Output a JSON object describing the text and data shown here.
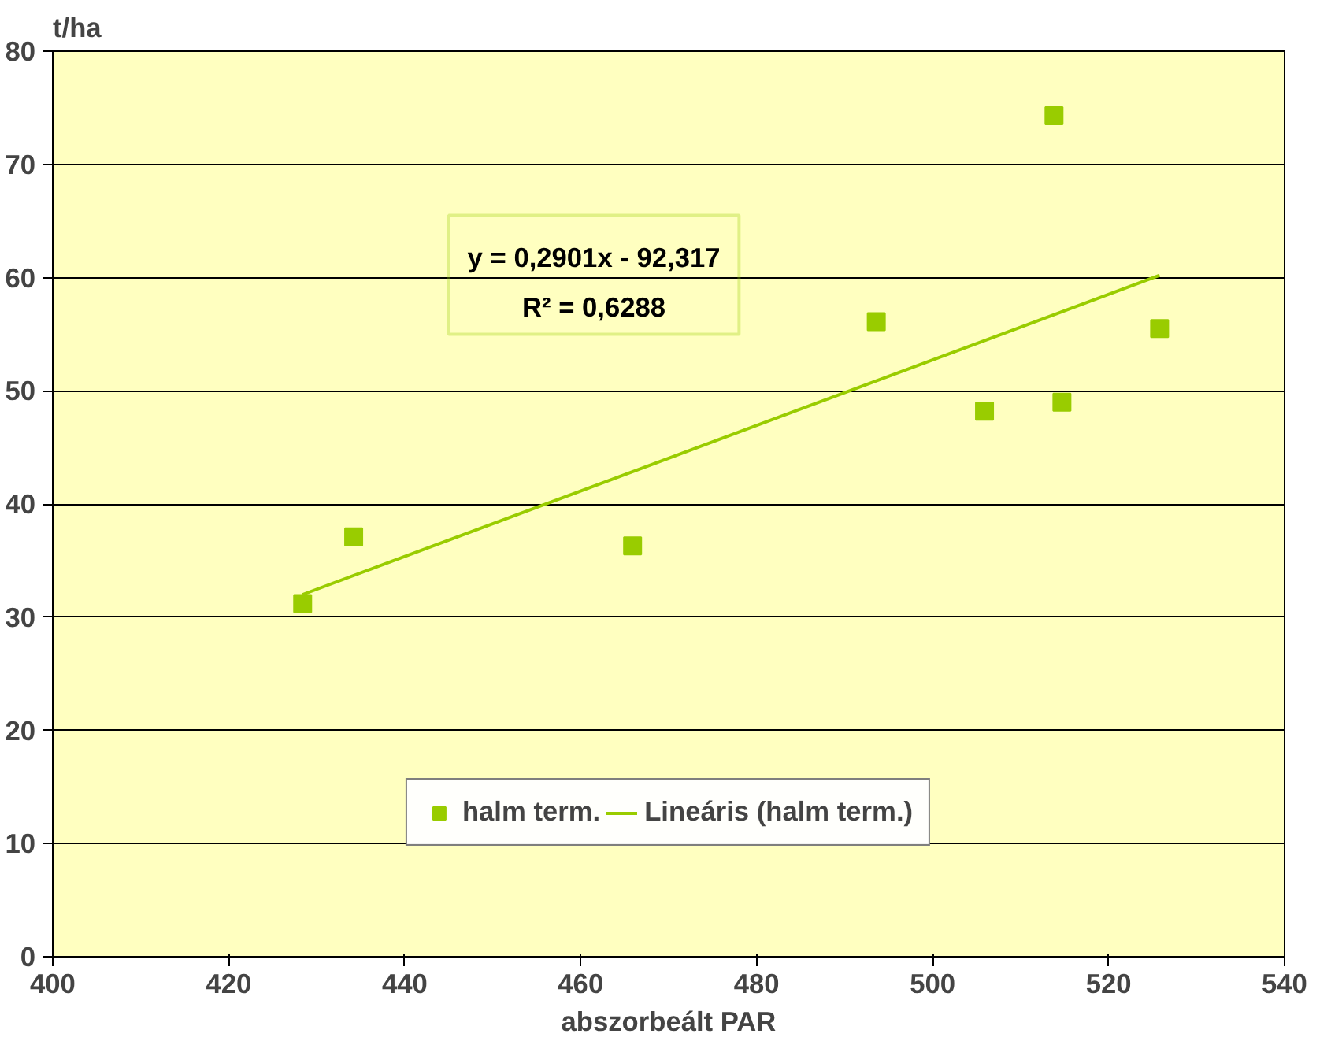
{
  "chart_data": {
    "type": "scatter",
    "xlabel": "abszorbeált PAR",
    "ylabel": "t/ha",
    "xlim": [
      400,
      540
    ],
    "xticks": [
      400,
      420,
      440,
      460,
      480,
      500,
      520,
      540
    ],
    "ylim": [
      0,
      80
    ],
    "yticks": [
      0,
      10,
      20,
      30,
      40,
      50,
      60,
      70,
      80
    ],
    "grid": "y",
    "legend": "bottom",
    "annotations": [
      "y = 0,2901x - 92,317",
      "R² = 0,6288"
    ],
    "series": [
      {
        "name": "halm term.",
        "marker": "square",
        "color": "#99cc00",
        "x": [
          428.4,
          434.2,
          465.9,
          493.6,
          505.9,
          514.7,
          513.8,
          525.8
        ],
        "values": [
          31.2,
          37.1,
          36.3,
          56.1,
          48.2,
          49.0,
          74.3,
          55.5
        ]
      },
      {
        "name": "Lineáris (halm term.)",
        "type": "line",
        "color": "#99cc00",
        "x": [
          428.4,
          525.8
        ],
        "values": [
          32.0,
          60.2
        ]
      }
    ]
  }
}
